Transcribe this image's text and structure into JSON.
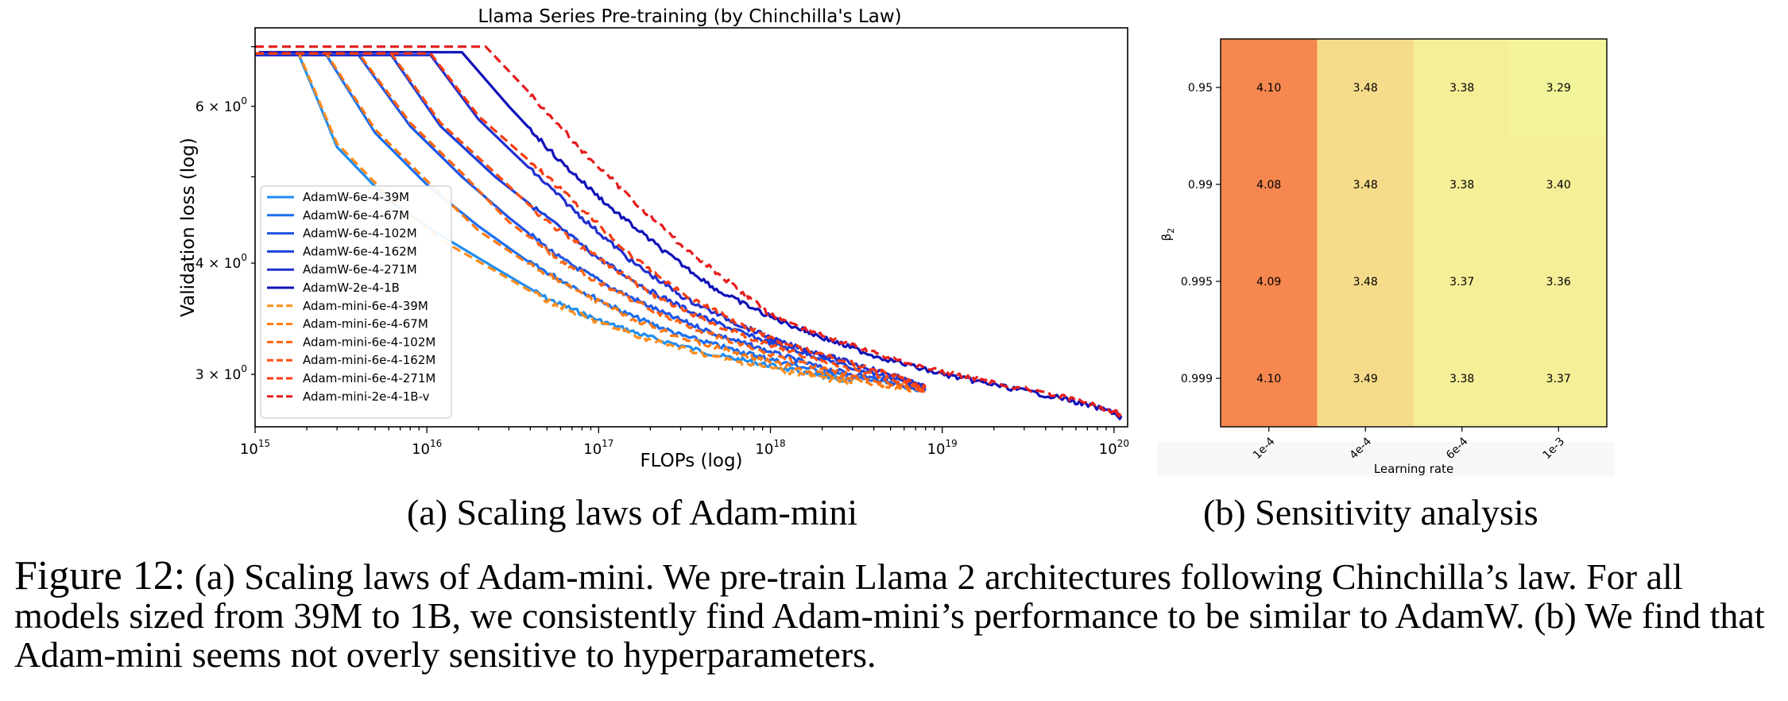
{
  "chart_data": [
    {
      "type": "line",
      "title": "Llama Series Pre-training (by Chinchilla's Law)",
      "xlabel": "FLOPs (log)",
      "ylabel": "Validation loss (log)",
      "x_scale": "log",
      "y_scale": "log",
      "xlim": [
        1000000000000000.0,
        1.2e+20
      ],
      "ylim": [
        2.62,
        7.35
      ],
      "x_ticks": [
        {
          "v": 1000000000000000.0,
          "base": "10",
          "exp": "15"
        },
        {
          "v": 1e+16,
          "base": "10",
          "exp": "16"
        },
        {
          "v": 1e+17,
          "base": "10",
          "exp": "17"
        },
        {
          "v": 1e+18,
          "base": "10",
          "exp": "18"
        },
        {
          "v": 1e+19,
          "base": "10",
          "exp": "19"
        },
        {
          "v": 1e+20,
          "base": "10",
          "exp": "20"
        }
      ],
      "y_ticks": [
        {
          "v": 6,
          "base": "6 × 10",
          "exp": "0"
        },
        {
          "v": 4,
          "base": "4 × 10",
          "exp": "0"
        },
        {
          "v": 3,
          "base": "3 × 10",
          "exp": "0"
        }
      ],
      "legend_position": "lower-left",
      "series": [
        {
          "name": "AdamW-6e-4-39M",
          "color": "#1f8ef1",
          "dash": "solid",
          "points": [
            [
              1000000000000000.0,
              6.85
            ],
            [
              1800000000000000.0,
              6.85
            ],
            [
              3000000000000000.0,
              5.4
            ],
            [
              6000000000000000.0,
              4.7
            ],
            [
              1.2e+16,
              4.3
            ],
            [
              2.5e+16,
              3.95
            ],
            [
              5e+16,
              3.65
            ],
            [
              1e+17,
              3.45
            ],
            [
              2e+17,
              3.3
            ],
            [
              5e+17,
              3.15
            ],
            [
              1e+18,
              3.07
            ],
            [
              2e+18,
              2.98
            ],
            [
              3e+18,
              2.95
            ]
          ]
        },
        {
          "name": "AdamW-6e-4-67M",
          "color": "#1a6ff0",
          "dash": "solid",
          "points": [
            [
              1000000000000000.0,
              6.85
            ],
            [
              2600000000000000.0,
              6.85
            ],
            [
              5000000000000000.0,
              5.6
            ],
            [
              1e+16,
              4.9
            ],
            [
              2e+16,
              4.4
            ],
            [
              4e+16,
              4.0
            ],
            [
              8e+16,
              3.72
            ],
            [
              1.5e+17,
              3.5
            ],
            [
              3e+17,
              3.32
            ],
            [
              6e+17,
              3.2
            ],
            [
              1e+18,
              3.12
            ],
            [
              2e+18,
              3.02
            ],
            [
              4e+18,
              2.95
            ],
            [
              8e+18,
              2.88
            ]
          ]
        },
        {
          "name": "AdamW-6e-4-102M",
          "color": "#1f55e6",
          "dash": "solid",
          "points": [
            [
              1000000000000000.0,
              6.85
            ],
            [
              4000000000000000.0,
              6.85
            ],
            [
              8000000000000000.0,
              5.7
            ],
            [
              1.6e+16,
              5.0
            ],
            [
              3e+16,
              4.5
            ],
            [
              6e+16,
              4.05
            ],
            [
              1.2e+17,
              3.75
            ],
            [
              2.5e+17,
              3.5
            ],
            [
              5e+17,
              3.32
            ],
            [
              1e+18,
              3.18
            ],
            [
              2e+18,
              3.05
            ],
            [
              4e+18,
              2.97
            ],
            [
              8e+18,
              2.88
            ]
          ]
        },
        {
          "name": "AdamW-6e-4-162M",
          "color": "#1a40dd",
          "dash": "solid",
          "points": [
            [
              1000000000000000.0,
              6.85
            ],
            [
              6200000000000000.0,
              6.85
            ],
            [
              1.2e+16,
              5.7
            ],
            [
              2.5e+16,
              5.0
            ],
            [
              5e+16,
              4.5
            ],
            [
              1e+17,
              4.05
            ],
            [
              2e+17,
              3.72
            ],
            [
              4e+17,
              3.48
            ],
            [
              8e+17,
              3.3
            ],
            [
              1.5e+18,
              3.18
            ],
            [
              3e+18,
              3.05
            ],
            [
              6e+18,
              2.95
            ],
            [
              8e+18,
              2.88
            ]
          ]
        },
        {
          "name": "AdamW-6e-4-271M",
          "color": "#2230d0",
          "dash": "solid",
          "points": [
            [
              1000000000000000.0,
              6.85
            ],
            [
              1.05e+16,
              6.85
            ],
            [
              2e+16,
              5.8
            ],
            [
              4e+16,
              5.1
            ],
            [
              8e+16,
              4.5
            ],
            [
              1.6e+17,
              4.0
            ],
            [
              3.2e+17,
              3.65
            ],
            [
              6.4e+17,
              3.42
            ],
            [
              1.2e+18,
              3.25
            ],
            [
              2.5e+18,
              3.12
            ],
            [
              5e+18,
              3.0
            ],
            [
              8e+18,
              2.9
            ]
          ]
        },
        {
          "name": "AdamW-2e-4-1B",
          "color": "#1010b8",
          "dash": "solid",
          "points": [
            [
              1050000000000000.0,
              6.9
            ],
            [
              1.6e+16,
              6.9
            ],
            [
              3e+16,
              6.0
            ],
            [
              6e+16,
              5.2
            ],
            [
              1.2e+17,
              4.6
            ],
            [
              2.5e+17,
              4.1
            ],
            [
              5e+17,
              3.72
            ],
            [
              1e+18,
              3.48
            ],
            [
              2e+18,
              3.3
            ],
            [
              4e+18,
              3.15
            ],
            [
              1e+19,
              3.0
            ],
            [
              2e+19,
              2.92
            ],
            [
              5e+19,
              2.82
            ],
            [
              1e+20,
              2.72
            ],
            [
              1.1e+20,
              2.68
            ]
          ]
        },
        {
          "name": "Adam-mini-6e-4-39M",
          "color": "#ff8c1a",
          "dash": "dashed",
          "points": [
            [
              1000000000000000.0,
              6.88
            ],
            [
              1800000000000000.0,
              6.88
            ],
            [
              3000000000000000.0,
              5.45
            ],
            [
              6000000000000000.0,
              4.75
            ],
            [
              1.2e+16,
              4.25
            ],
            [
              2.5e+16,
              3.92
            ],
            [
              5e+16,
              3.63
            ],
            [
              1e+17,
              3.43
            ],
            [
              2e+17,
              3.28
            ],
            [
              5e+17,
              3.13
            ],
            [
              1e+18,
              3.05
            ],
            [
              2e+18,
              2.97
            ],
            [
              3e+18,
              2.94
            ]
          ]
        },
        {
          "name": "Adam-mini-6e-4-67M",
          "color": "#ff7a10",
          "dash": "dashed",
          "points": [
            [
              1000000000000000.0,
              6.88
            ],
            [
              2600000000000000.0,
              6.88
            ],
            [
              5000000000000000.0,
              5.65
            ],
            [
              1e+16,
              4.95
            ],
            [
              2e+16,
              4.35
            ],
            [
              4e+16,
              3.98
            ],
            [
              8e+16,
              3.7
            ],
            [
              1.5e+17,
              3.48
            ],
            [
              3e+17,
              3.3
            ],
            [
              6e+17,
              3.18
            ],
            [
              1e+18,
              3.1
            ],
            [
              2e+18,
              3.0
            ],
            [
              4e+18,
              2.93
            ],
            [
              8e+18,
              2.87
            ]
          ]
        },
        {
          "name": "Adam-mini-6e-4-102M",
          "color": "#ff6410",
          "dash": "dashed",
          "points": [
            [
              1000000000000000.0,
              6.88
            ],
            [
              4000000000000000.0,
              6.88
            ],
            [
              8000000000000000.0,
              5.75
            ],
            [
              1.6e+16,
              5.05
            ],
            [
              3e+16,
              4.45
            ],
            [
              6e+16,
              4.03
            ],
            [
              1.2e+17,
              3.73
            ],
            [
              2.5e+17,
              3.48
            ],
            [
              5e+17,
              3.3
            ],
            [
              1e+18,
              3.16
            ],
            [
              2e+18,
              3.04
            ],
            [
              4e+18,
              2.96
            ],
            [
              8e+18,
              2.87
            ]
          ]
        },
        {
          "name": "Adam-mini-6e-4-162M",
          "color": "#ff4f10",
          "dash": "dashed",
          "points": [
            [
              1000000000000000.0,
              6.88
            ],
            [
              6200000000000000.0,
              6.88
            ],
            [
              1.2e+16,
              5.75
            ],
            [
              2.5e+16,
              5.05
            ],
            [
              5e+16,
              4.45
            ],
            [
              1e+17,
              4.05
            ],
            [
              2e+17,
              3.7
            ],
            [
              4e+17,
              3.46
            ],
            [
              8e+17,
              3.28
            ],
            [
              1.5e+18,
              3.16
            ],
            [
              3e+18,
              3.04
            ],
            [
              6e+18,
              2.94
            ],
            [
              8e+18,
              2.87
            ]
          ]
        },
        {
          "name": "Adam-mini-6e-4-271M",
          "color": "#f83a10",
          "dash": "dashed",
          "points": [
            [
              1000000000000000.0,
              6.88
            ],
            [
              1.05e+16,
              6.88
            ],
            [
              2e+16,
              5.85
            ],
            [
              4e+16,
              5.2
            ],
            [
              8e+16,
              4.6
            ],
            [
              1.6e+17,
              4.05
            ],
            [
              3.2e+17,
              3.68
            ],
            [
              6.4e+17,
              3.43
            ],
            [
              1.2e+18,
              3.25
            ],
            [
              2.5e+18,
              3.12
            ],
            [
              5e+18,
              3.0
            ],
            [
              8e+18,
              2.9
            ]
          ]
        },
        {
          "name": "Adam-mini-2e-4-1B-v",
          "color": "#e51c1c",
          "dash": "dashed",
          "points": [
            [
              1000000000000000.0,
              7.0
            ],
            [
              2.2e+16,
              7.0
            ],
            [
              4e+16,
              6.2
            ],
            [
              8e+16,
              5.35
            ],
            [
              1.6e+17,
              4.7
            ],
            [
              3.2e+17,
              4.15
            ],
            [
              6.4e+17,
              3.75
            ],
            [
              1e+18,
              3.5
            ],
            [
              2e+18,
              3.32
            ],
            [
              4e+18,
              3.17
            ],
            [
              1e+19,
              3.02
            ],
            [
              2e+19,
              2.94
            ],
            [
              5e+19,
              2.83
            ],
            [
              1e+20,
              2.73
            ],
            [
              1.1e+20,
              2.69
            ]
          ]
        }
      ]
    },
    {
      "type": "heatmap",
      "xlabel": "Learning rate",
      "ylabel_base": "β",
      "ylabel_sub": "2",
      "x_categories": [
        "1e-4",
        "4e-4",
        "6e-4",
        "1e-3"
      ],
      "y_categories": [
        "0.95",
        "0.99",
        "0.995",
        "0.999"
      ],
      "values": [
        [
          4.1,
          3.48,
          3.38,
          3.29
        ],
        [
          4.08,
          3.48,
          3.38,
          3.4
        ],
        [
          4.09,
          3.48,
          3.37,
          3.36
        ],
        [
          4.1,
          3.49,
          3.38,
          3.37
        ]
      ],
      "value_labels": [
        [
          "4.10",
          "3.48",
          "3.38",
          "3.29"
        ],
        [
          "4.08",
          "3.48",
          "3.38",
          "3.40"
        ],
        [
          "4.09",
          "3.48",
          "3.37",
          "3.36"
        ],
        [
          "4.10",
          "3.49",
          "3.38",
          "3.37"
        ]
      ],
      "colors": [
        [
          "#f5874f",
          "#f6dc8a",
          "#f5ef98",
          "#f2f59c"
        ],
        [
          "#f5874f",
          "#f6dc8a",
          "#f5ef98",
          "#f5ef98"
        ],
        [
          "#f5874f",
          "#f6dc8a",
          "#f5ef98",
          "#f5ef98"
        ],
        [
          "#f5874f",
          "#f6dc8a",
          "#f5ef98",
          "#f5ef98"
        ]
      ]
    }
  ],
  "subcaptions": {
    "a": "(a) Scaling laws of Adam-mini",
    "b": "(b) Sensitivity analysis"
  },
  "caption": {
    "label": "Figure 12:",
    "text": " (a) Scaling laws of Adam-mini. We pre-train Llama 2 architectures following Chinchilla’s law. For all models sized from 39M to 1B, we consistently find Adam-mini’s performance to be similar to AdamW. (b) We find that Adam-mini seems not overly sensitive to hyperparameters."
  }
}
